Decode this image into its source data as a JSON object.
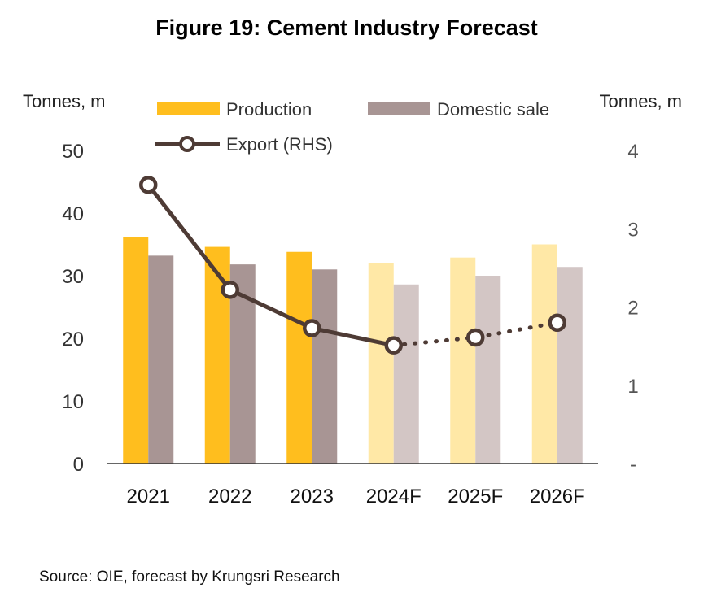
{
  "title": "Figure 19: Cement Industry Forecast",
  "source": "Source: OIE,  forecast by Krungsri Research",
  "colors": {
    "production_actual": "#FFBE1E",
    "production_forecast": "#FFE8A6",
    "domestic_actual": "#A89594",
    "domestic_forecast": "#D3C6C5",
    "export_line": "#4E3B35",
    "axis": "#333333"
  },
  "chart_data": {
    "type": "bar",
    "categories": [
      "2021",
      "2022",
      "2023",
      "2024F",
      "2025F",
      "2026F"
    ],
    "forecast_from_index": 3,
    "left_axis": {
      "label": "Tonnes, m",
      "ylim": [
        0,
        50
      ],
      "ticks": [
        "0",
        "10",
        "20",
        "30",
        "40",
        "50"
      ]
    },
    "right_axis": {
      "label": "Tonnes, m",
      "ylim": [
        0,
        4
      ],
      "ticks": [
        "-",
        "1",
        "2",
        "3",
        "4"
      ]
    },
    "series": [
      {
        "name": "Production",
        "type": "bar",
        "axis": "left",
        "values": [
          36.2,
          34.6,
          33.8,
          32.0,
          32.9,
          35.0
        ]
      },
      {
        "name": "Domestic sale",
        "type": "bar",
        "axis": "left",
        "values": [
          33.2,
          31.8,
          31.0,
          28.6,
          30.0,
          31.4
        ]
      },
      {
        "name": "Export (RHS)",
        "type": "line",
        "axis": "right",
        "values": [
          3.56,
          2.22,
          1.73,
          1.51,
          1.61,
          1.8
        ],
        "dotted_from_index": 3
      }
    ],
    "legend": "top",
    "grid": false
  }
}
